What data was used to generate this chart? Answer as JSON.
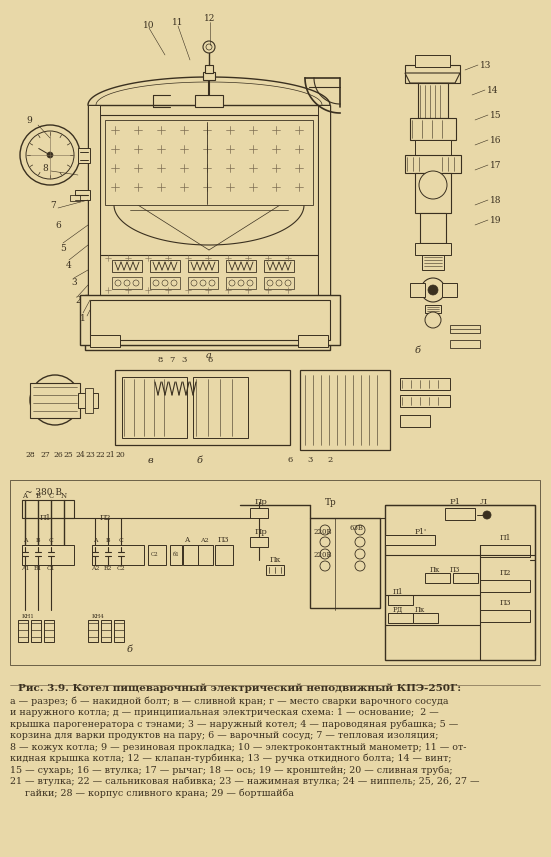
{
  "background_color": "#e8d8a8",
  "ink_color": "#3a3020",
  "light_ink": "#7a6a50",
  "title_line": "Рис. 3.9. Котел пищеварочный электрический неподвижный КПЭ-250Г:",
  "caption_lines": [
    "а — разрез; б — накидной болт; в — сливной кран; г — место сварки варочного сосуда",
    "и наружного котла; д — принципиальная электрическая схема: 1 — основание;  2 —",
    "крышка парогенератора с тэнами; 3 — наружный котел; 4 — пароводяная рубашка; 5 —",
    "корзина для варки продуктов на пару; 6 — варочный сосуд; 7 — тепловая изоляция;",
    "8 — кожух котла; 9 — резиновая прокладка; 10 — электроконтактный манометр; 11 — от-",
    "кидная крышка котла; 12 — клапан-турбинка; 13 — ручка откидного болта; 14 — винт;",
    "15 — сухарь; 16 — втулка; 17 — рычаг; 18 — ось; 19 — кронштейн; 20 — сливная труба;",
    "21 — втулка; 22 — сальниковая набивка; 23 — нажимная втулка; 24 — ниппель; 25, 26, 27 —",
    "     гайки; 28 — корпус сливного крана; 29 — бортшайба"
  ],
  "figsize": [
    5.51,
    8.57
  ],
  "dpi": 100
}
